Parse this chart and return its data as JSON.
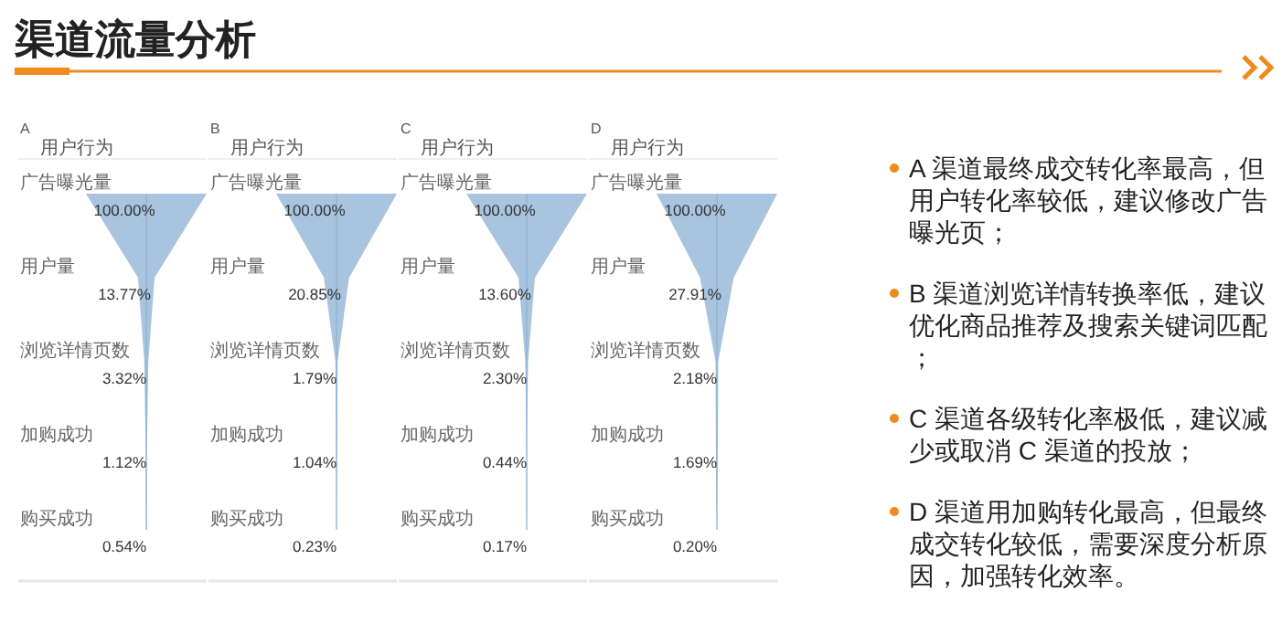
{
  "chart_data": [
    {
      "type": "other",
      "title": "渠道流量分析",
      "annotations": [
        "A 渠道最终成交转化率最高，但用户转化率较低，建议修改广告曝光页；",
        "B 渠道浏览详情转换率低，建议优化商品推荐及搜索关键词匹配；",
        "C 渠道各级转化率极低，建议减少或取消 C 渠道的投放；",
        "D 渠道用加购转化最高，但最终成交转化较低，需要深度分析原因，加强转化效率。"
      ]
    },
    {
      "type": "other",
      "title": "A",
      "ylabel": "用户行为",
      "color": "#a8c4de",
      "categories": [
        "广告曝光量",
        "用户量",
        "浏览详情页数",
        "加购成功",
        "购买成功"
      ],
      "values": [
        100.0,
        13.77,
        3.32,
        1.12,
        0.54
      ],
      "value_labels": [
        "100.00%",
        "13.77%",
        "3.32%",
        "1.12%",
        "0.54%"
      ]
    },
    {
      "type": "other",
      "title": "B",
      "ylabel": "用户行为",
      "color": "#a8c4de",
      "categories": [
        "广告曝光量",
        "用户量",
        "浏览详情页数",
        "加购成功",
        "购买成功"
      ],
      "values": [
        100.0,
        20.85,
        1.79,
        1.04,
        0.23
      ],
      "value_labels": [
        "100.00%",
        "20.85%",
        "1.79%",
        "1.04%",
        "0.23%"
      ]
    },
    {
      "type": "other",
      "title": "C",
      "ylabel": "用户行为",
      "color": "#a8c4de",
      "categories": [
        "广告曝光量",
        "用户量",
        "浏览详情页数",
        "加购成功",
        "购买成功"
      ],
      "values": [
        100.0,
        13.6,
        2.3,
        0.44,
        0.17
      ],
      "value_labels": [
        "100.00%",
        "13.60%",
        "2.30%",
        "0.44%",
        "0.17%"
      ]
    },
    {
      "type": "other",
      "title": "D",
      "ylabel": "用户行为",
      "color": "#a8c4de",
      "categories": [
        "广告曝光量",
        "用户量",
        "浏览详情页数",
        "加购成功",
        "购买成功"
      ],
      "values": [
        100.0,
        27.91,
        2.18,
        1.69,
        0.2
      ],
      "value_labels": [
        "100.00%",
        "27.91%",
        "2.18%",
        "1.69%",
        "0.20%"
      ]
    }
  ]
}
